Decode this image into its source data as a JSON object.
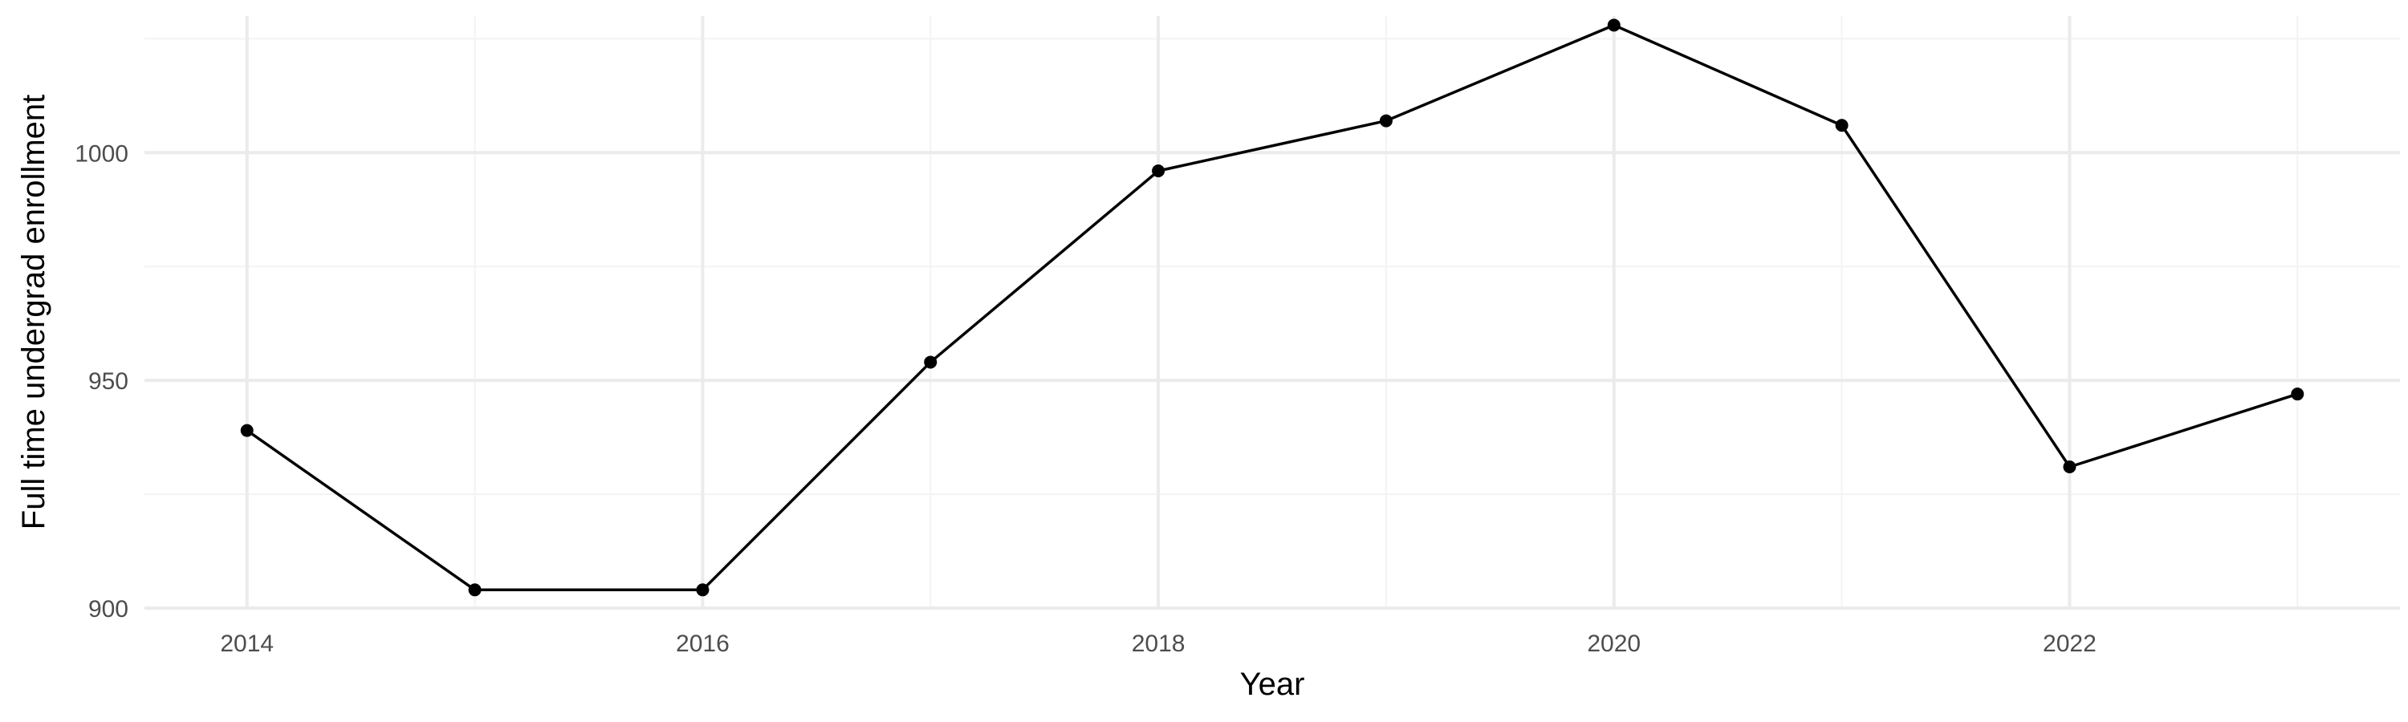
{
  "chart_data": {
    "type": "line",
    "title": "",
    "xlabel": "Year",
    "ylabel": "Full time undergrad enrollment",
    "x": [
      2014,
      2015,
      2016,
      2017,
      2018,
      2019,
      2020,
      2021,
      2022,
      2023
    ],
    "series": [
      {
        "values": [
          939,
          904,
          904,
          954,
          996,
          1007,
          1028,
          1006,
          931,
          947
        ]
      }
    ],
    "xlim": [
      2013.55,
      2023.45
    ],
    "ylim": [
      900,
      1030
    ],
    "x_major_ticks": [
      2014,
      2016,
      2018,
      2020,
      2022
    ],
    "x_minor_ticks": [
      2015,
      2017,
      2019,
      2021,
      2023
    ],
    "y_major_ticks": [
      900,
      950,
      1000
    ],
    "y_minor_ticks": [
      925,
      975,
      1025
    ],
    "x_tick_labels": [
      "2014",
      "2016",
      "2018",
      "2020",
      "2022"
    ],
    "y_tick_labels": [
      "900",
      "950",
      "1000"
    ],
    "grid": true,
    "legend": "none",
    "colors": {
      "line": "#000000",
      "point": "#000000",
      "major_grid": "#ebebeb",
      "minor_grid": "#f3f3f3",
      "tick_text": "#4d4d4d",
      "title_text": "#000000",
      "background": "#ffffff"
    }
  }
}
